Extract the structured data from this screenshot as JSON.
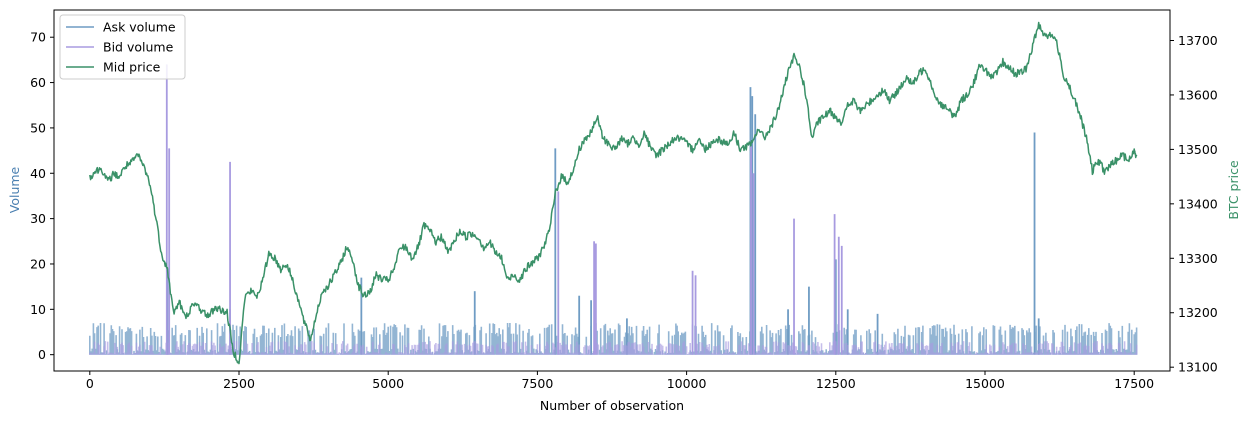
{
  "chart_data": {
    "type": "line",
    "xlabel": "Number of observation",
    "ylabel_left": "Volume",
    "ylabel_right": "BTC price",
    "xlim": [
      -600,
      18100
    ],
    "ylim_left": [
      -3.6,
      76
    ],
    "ylim_right": [
      13093,
      13756
    ],
    "x_ticks": [
      0,
      2500,
      5000,
      7500,
      10000,
      12500,
      15000,
      17500
    ],
    "x_tick_labels": [
      "0",
      "2500",
      "5000",
      "7500",
      "10000",
      "12500",
      "15000",
      "17500"
    ],
    "y_left_ticks": [
      0,
      10,
      20,
      30,
      40,
      50,
      60,
      70
    ],
    "y_left_tick_labels": [
      "0",
      "10",
      "20",
      "30",
      "40",
      "50",
      "60",
      "70"
    ],
    "y_right_ticks": [
      13100,
      13200,
      13300,
      13400,
      13500,
      13600,
      13700
    ],
    "y_right_tick_labels": [
      "13100",
      "13200",
      "13300",
      "13400",
      "13500",
      "13600",
      "13700"
    ],
    "grid": false,
    "legend_position": "top-left",
    "series": [
      {
        "name": "Ask volume",
        "axis": "left",
        "color": "#6f9cc4",
        "baseline_band": [
          0,
          7
        ],
        "spikes": [
          [
            1300,
            19
          ],
          [
            2350,
            10
          ],
          [
            4550,
            17
          ],
          [
            6450,
            14
          ],
          [
            7800,
            45.5
          ],
          [
            8200,
            13
          ],
          [
            8400,
            12
          ],
          [
            9000,
            8
          ],
          [
            11070,
            59
          ],
          [
            11100,
            57
          ],
          [
            11150,
            53
          ],
          [
            11700,
            10
          ],
          [
            12050,
            15
          ],
          [
            12500,
            21
          ],
          [
            12700,
            10
          ],
          [
            13200,
            9
          ],
          [
            15830,
            49
          ],
          [
            15900,
            8
          ]
        ]
      },
      {
        "name": "Bid volume",
        "axis": "left",
        "color": "#a89be0",
        "baseline_band": [
          0,
          3
        ],
        "spikes": [
          [
            1290,
            64
          ],
          [
            1330,
            45.5
          ],
          [
            2350,
            42.5
          ],
          [
            7850,
            36
          ],
          [
            8450,
            25
          ],
          [
            8480,
            24.5
          ],
          [
            10100,
            18.5
          ],
          [
            10150,
            17.5
          ],
          [
            11080,
            46
          ],
          [
            11120,
            40
          ],
          [
            11800,
            30
          ],
          [
            12480,
            31
          ],
          [
            12550,
            26
          ],
          [
            12600,
            24
          ]
        ]
      },
      {
        "name": "Mid price",
        "axis": "right",
        "color": "#3a9168",
        "points": [
          [
            0,
            13450
          ],
          [
            100,
            13460
          ],
          [
            200,
            13465
          ],
          [
            300,
            13440
          ],
          [
            400,
            13455
          ],
          [
            500,
            13450
          ],
          [
            600,
            13470
          ],
          [
            700,
            13475
          ],
          [
            800,
            13490
          ],
          [
            900,
            13470
          ],
          [
            1000,
            13440
          ],
          [
            1100,
            13380
          ],
          [
            1200,
            13310
          ],
          [
            1300,
            13280
          ],
          [
            1400,
            13200
          ],
          [
            1500,
            13220
          ],
          [
            1600,
            13190
          ],
          [
            1700,
            13210
          ],
          [
            1800,
            13215
          ],
          [
            1900,
            13200
          ],
          [
            2000,
            13195
          ],
          [
            2100,
            13210
          ],
          [
            2200,
            13205
          ],
          [
            2300,
            13200
          ],
          [
            2400,
            13130
          ],
          [
            2500,
            13110
          ],
          [
            2600,
            13230
          ],
          [
            2700,
            13240
          ],
          [
            2800,
            13230
          ],
          [
            2900,
            13260
          ],
          [
            3000,
            13310
          ],
          [
            3100,
            13300
          ],
          [
            3200,
            13280
          ],
          [
            3300,
            13290
          ],
          [
            3400,
            13260
          ],
          [
            3500,
            13220
          ],
          [
            3600,
            13180
          ],
          [
            3700,
            13150
          ],
          [
            3800,
            13200
          ],
          [
            3900,
            13240
          ],
          [
            4000,
            13250
          ],
          [
            4100,
            13270
          ],
          [
            4200,
            13290
          ],
          [
            4300,
            13320
          ],
          [
            4400,
            13300
          ],
          [
            4500,
            13250
          ],
          [
            4600,
            13230
          ],
          [
            4700,
            13240
          ],
          [
            4800,
            13270
          ],
          [
            4900,
            13260
          ],
          [
            5000,
            13260
          ],
          [
            5100,
            13280
          ],
          [
            5200,
            13320
          ],
          [
            5300,
            13320
          ],
          [
            5400,
            13300
          ],
          [
            5500,
            13320
          ],
          [
            5600,
            13360
          ],
          [
            5700,
            13350
          ],
          [
            5800,
            13330
          ],
          [
            5900,
            13340
          ],
          [
            6000,
            13310
          ],
          [
            6100,
            13330
          ],
          [
            6200,
            13350
          ],
          [
            6300,
            13340
          ],
          [
            6400,
            13345
          ],
          [
            6500,
            13340
          ],
          [
            6600,
            13320
          ],
          [
            6700,
            13330
          ],
          [
            6800,
            13310
          ],
          [
            6900,
            13300
          ],
          [
            7000,
            13260
          ],
          [
            7100,
            13270
          ],
          [
            7200,
            13260
          ],
          [
            7300,
            13280
          ],
          [
            7400,
            13290
          ],
          [
            7500,
            13300
          ],
          [
            7600,
            13320
          ],
          [
            7700,
            13350
          ],
          [
            7800,
            13420
          ],
          [
            7900,
            13450
          ],
          [
            8000,
            13440
          ],
          [
            8100,
            13460
          ],
          [
            8200,
            13500
          ],
          [
            8300,
            13520
          ],
          [
            8400,
            13530
          ],
          [
            8500,
            13560
          ],
          [
            8600,
            13520
          ],
          [
            8700,
            13510
          ],
          [
            8800,
            13500
          ],
          [
            8900,
            13520
          ],
          [
            9000,
            13510
          ],
          [
            9100,
            13520
          ],
          [
            9200,
            13510
          ],
          [
            9300,
            13530
          ],
          [
            9400,
            13500
          ],
          [
            9500,
            13490
          ],
          [
            9600,
            13500
          ],
          [
            9700,
            13510
          ],
          [
            9800,
            13520
          ],
          [
            9900,
            13520
          ],
          [
            10000,
            13510
          ],
          [
            10100,
            13500
          ],
          [
            10200,
            13520
          ],
          [
            10300,
            13500
          ],
          [
            10400,
            13510
          ],
          [
            10500,
            13520
          ],
          [
            10600,
            13515
          ],
          [
            10700,
            13510
          ],
          [
            10800,
            13530
          ],
          [
            10900,
            13500
          ],
          [
            11000,
            13505
          ],
          [
            11100,
            13510
          ],
          [
            11200,
            13540
          ],
          [
            11300,
            13520
          ],
          [
            11400,
            13540
          ],
          [
            11500,
            13560
          ],
          [
            11600,
            13600
          ],
          [
            11700,
            13640
          ],
          [
            11800,
            13670
          ],
          [
            11900,
            13650
          ],
          [
            12000,
            13600
          ],
          [
            12100,
            13520
          ],
          [
            12200,
            13550
          ],
          [
            12300,
            13560
          ],
          [
            12400,
            13570
          ],
          [
            12500,
            13560
          ],
          [
            12600,
            13550
          ],
          [
            12700,
            13580
          ],
          [
            12800,
            13590
          ],
          [
            12900,
            13570
          ],
          [
            13000,
            13580
          ],
          [
            13100,
            13590
          ],
          [
            13200,
            13600
          ],
          [
            13300,
            13610
          ],
          [
            13400,
            13590
          ],
          [
            13500,
            13600
          ],
          [
            13600,
            13620
          ],
          [
            13700,
            13630
          ],
          [
            13800,
            13620
          ],
          [
            13900,
            13640
          ],
          [
            14000,
            13650
          ],
          [
            14100,
            13620
          ],
          [
            14200,
            13590
          ],
          [
            14300,
            13580
          ],
          [
            14400,
            13570
          ],
          [
            14500,
            13560
          ],
          [
            14600,
            13590
          ],
          [
            14700,
            13600
          ],
          [
            14800,
            13620
          ],
          [
            14900,
            13650
          ],
          [
            15000,
            13650
          ],
          [
            15100,
            13630
          ],
          [
            15200,
            13640
          ],
          [
            15300,
            13660
          ],
          [
            15400,
            13650
          ],
          [
            15500,
            13640
          ],
          [
            15600,
            13640
          ],
          [
            15700,
            13650
          ],
          [
            15800,
            13690
          ],
          [
            15900,
            13730
          ],
          [
            16000,
            13710
          ],
          [
            16100,
            13710
          ],
          [
            16200,
            13700
          ],
          [
            16300,
            13640
          ],
          [
            16400,
            13620
          ],
          [
            16500,
            13590
          ],
          [
            16600,
            13560
          ],
          [
            16700,
            13520
          ],
          [
            16800,
            13460
          ],
          [
            16900,
            13480
          ],
          [
            17000,
            13460
          ],
          [
            17100,
            13470
          ],
          [
            17200,
            13480
          ],
          [
            17300,
            13490
          ],
          [
            17400,
            13480
          ],
          [
            17500,
            13495
          ],
          [
            17540,
            13490
          ]
        ]
      }
    ]
  }
}
